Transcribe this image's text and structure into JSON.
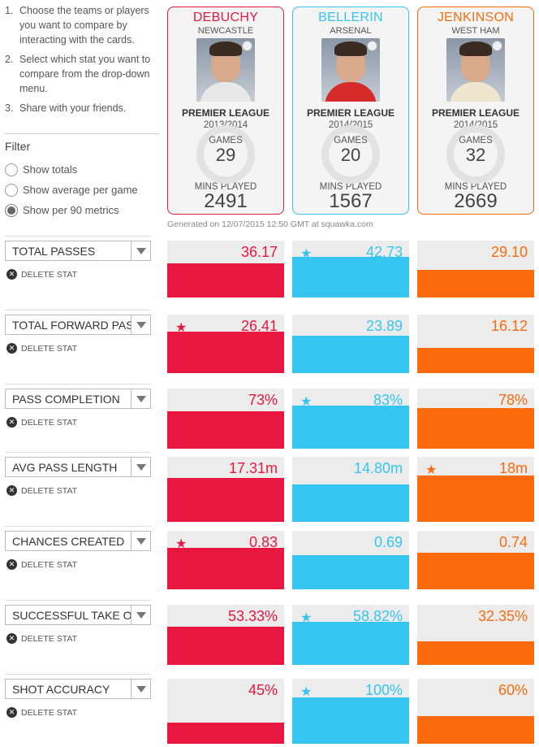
{
  "instructions": [
    {
      "num": "1.",
      "text": "Choose the teams or players you want to compare by interacting with the cards."
    },
    {
      "num": "2.",
      "text": "Select which stat you want to compare from the drop-down menu."
    },
    {
      "num": "3.",
      "text": "Share with your friends."
    }
  ],
  "filter": {
    "title": "Filter",
    "options": [
      {
        "label": "Show totals",
        "checked": false
      },
      {
        "label": "Show average per game",
        "checked": false
      },
      {
        "label": "Show per 90 metrics",
        "checked": true
      }
    ]
  },
  "players": [
    {
      "name": "DEBUCHY",
      "team": "NEWCASTLE",
      "league": "PREMIER LEAGUE",
      "season": "2013/2014",
      "games_label": "GAMES",
      "games": "29",
      "mins_label": "MINS PLAYED",
      "mins": "2491",
      "color": "#e8173f",
      "shirt": "#e8e8e8"
    },
    {
      "name": "BELLERIN",
      "team": "ARSENAL",
      "league": "PREMIER LEAGUE",
      "season": "2014/2015",
      "games_label": "GAMES",
      "games": "20",
      "mins_label": "MINS PLAYED",
      "mins": "1567",
      "color": "#35c5f0",
      "shirt": "#d52b2b"
    },
    {
      "name": "JENKINSON",
      "team": "WEST HAM",
      "league": "PREMIER LEAGUE",
      "season": "2014/2015",
      "games_label": "GAMES",
      "games": "32",
      "mins_label": "MINS PLAYED",
      "mins": "2669",
      "color": "#fb6b0e",
      "shirt": "#efe6d0"
    }
  ],
  "generated": "Generated on 12/07/2015 12:50 GMT at squawka.com",
  "delete_label": "DELETE STAT",
  "stats": [
    {
      "label": "TOTAL PASSES",
      "values": [
        "36.17",
        "42.73",
        "29.10"
      ],
      "fill": [
        0.6,
        0.71,
        0.48
      ],
      "star": 1
    },
    {
      "label": "TOTAL FORWARD PASSES",
      "values": [
        "26.41",
        "23.89",
        "16.12"
      ],
      "fill": [
        0.71,
        0.64,
        0.43
      ],
      "star": 0
    },
    {
      "label": "PASS COMPLETION",
      "values": [
        "73%",
        "83%",
        "78%"
      ],
      "fill": [
        0.62,
        0.71,
        0.67
      ],
      "star": 1
    },
    {
      "label": "AVG PASS LENGTH",
      "values": [
        "17.31m",
        "14.80m",
        "18m"
      ],
      "fill": [
        0.68,
        0.58,
        0.71
      ],
      "star": 2
    },
    {
      "label": "CHANCES CREATED",
      "values": [
        "0.83",
        "0.69",
        "0.74"
      ],
      "fill": [
        0.71,
        0.59,
        0.63
      ],
      "star": 0
    },
    {
      "label": "SUCCESSFUL TAKE ONS",
      "values": [
        "53.33%",
        "58.82%",
        "32.35%"
      ],
      "fill": [
        0.64,
        0.71,
        0.39
      ],
      "star": 1
    },
    {
      "label": "SHOT ACCURACY",
      "values": [
        "45%",
        "100%",
        "60%"
      ],
      "fill": [
        0.32,
        0.71,
        0.43
      ],
      "star": 1
    }
  ]
}
